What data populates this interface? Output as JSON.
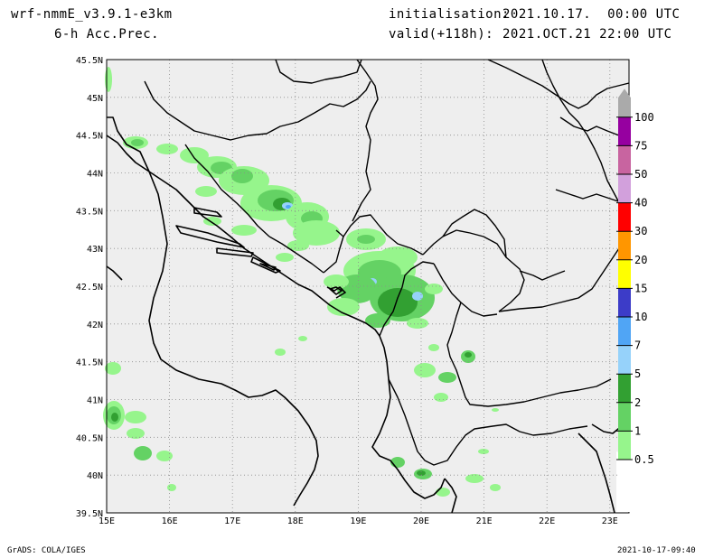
{
  "header": {
    "model": "wrf-nmmE_v3.9.1-e3km",
    "field": "6-h Acc.Prec.",
    "init_label": "initialisation:",
    "init_value": "2021.10.17.  00:00 UTC",
    "valid_label": "valid(+118h):",
    "valid_value": "2021.OCT.21 22:00 UTC"
  },
  "footer": {
    "credit": "GrADS: COLA/IGES",
    "timestamp": "2021-10-17-09:40"
  },
  "axes": {
    "lat_labels": [
      "45.5N",
      "45N",
      "44.5N",
      "44N",
      "43.5N",
      "43N",
      "42.5N",
      "42N",
      "41.5N",
      "41N",
      "40.5N",
      "40N",
      "39.5N"
    ],
    "lon_labels": [
      "15E",
      "16E",
      "17E",
      "18E",
      "19E",
      "20E",
      "21E",
      "22E",
      "23E"
    ]
  },
  "colorbar": {
    "levels": [
      "0.5",
      "1",
      "2",
      "5",
      "7",
      "10",
      "15",
      "20",
      "30",
      "40",
      "50",
      "75",
      "100"
    ],
    "colors": [
      "#96f58c",
      "#64d264",
      "#32a032",
      "#96d2fa",
      "#50a5f5",
      "#3c3cc8",
      "#ffff00",
      "#ff9600",
      "#ff0000",
      "#d2a0dc",
      "#c864a0",
      "#9600a0",
      "#aaaaaa"
    ]
  },
  "colors": {
    "land": "#eeeeee",
    "white_bg": "#ffffff",
    "coast": "#000000",
    "grid": "#8c8c8c"
  }
}
